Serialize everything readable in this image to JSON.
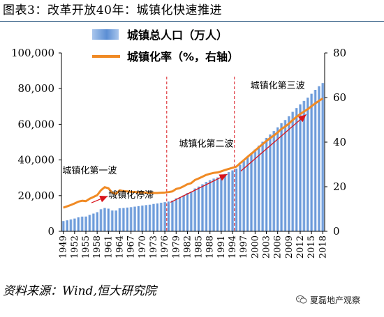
{
  "header": {
    "title": "图表3：改革开放40年：城镇化快速推进"
  },
  "footer": {
    "source": "资料来源：Wind,恒大研究院",
    "watermark": "夏磊地产观察"
  },
  "colors": {
    "bars": "#5b8ed4",
    "bars_light": "#a9c6ec",
    "line": "#f08a24",
    "arrow": "#d9141b",
    "divider": "#d9141b"
  },
  "chart_data": {
    "type": "bar",
    "series": [
      {
        "name": "城镇总人口（万人）",
        "type": "bar",
        "axis": "left",
        "x": [
          1949,
          1950,
          1951,
          1952,
          1953,
          1954,
          1955,
          1956,
          1957,
          1958,
          1959,
          1960,
          1961,
          1962,
          1963,
          1964,
          1965,
          1966,
          1967,
          1968,
          1969,
          1970,
          1971,
          1972,
          1973,
          1974,
          1975,
          1976,
          1977,
          1978,
          1979,
          1980,
          1981,
          1982,
          1983,
          1984,
          1985,
          1986,
          1987,
          1988,
          1989,
          1990,
          1991,
          1992,
          1993,
          1994,
          1995,
          1996,
          1997,
          1998,
          1999,
          2000,
          2001,
          2002,
          2003,
          2004,
          2005,
          2006,
          2007,
          2008,
          2009,
          2010,
          2011,
          2012,
          2013,
          2014,
          2015,
          2016,
          2017,
          2018
        ],
        "values": [
          5765,
          6169,
          6632,
          7163,
          7826,
          8249,
          8285,
          9185,
          9949,
          10721,
          12371,
          13073,
          12707,
          11659,
          11646,
          12950,
          13045,
          13313,
          13548,
          13838,
          14117,
          14424,
          14711,
          14935,
          15345,
          15595,
          16030,
          16341,
          16669,
          17245,
          18495,
          19140,
          20171,
          21480,
          22274,
          24017,
          25094,
          26366,
          27674,
          28661,
          29540,
          30195,
          31203,
          32175,
          33173,
          34169,
          35174,
          37304,
          39449,
          41608,
          43748,
          45906,
          48064,
          50212,
          52376,
          54283,
          56212,
          58288,
          60633,
          62403,
          64512,
          66978,
          69079,
          71182,
          73111,
          74916,
          77116,
          79298,
          81347,
          83137
        ]
      },
      {
        "name": "城镇化率（%，右轴）",
        "type": "line",
        "axis": "right",
        "x": [
          1949,
          1950,
          1951,
          1952,
          1953,
          1954,
          1955,
          1956,
          1957,
          1958,
          1959,
          1960,
          1961,
          1962,
          1963,
          1964,
          1965,
          1966,
          1967,
          1968,
          1969,
          1970,
          1971,
          1972,
          1973,
          1974,
          1975,
          1976,
          1977,
          1978,
          1979,
          1980,
          1981,
          1982,
          1983,
          1984,
          1985,
          1986,
          1987,
          1988,
          1989,
          1990,
          1991,
          1992,
          1993,
          1994,
          1995,
          1996,
          1997,
          1998,
          1999,
          2000,
          2001,
          2002,
          2003,
          2004,
          2005,
          2006,
          2007,
          2008,
          2009,
          2010,
          2011,
          2012,
          2013,
          2014,
          2015,
          2016,
          2017,
          2018
        ],
        "values": [
          10.6,
          11.2,
          11.8,
          12.5,
          13.3,
          13.7,
          13.5,
          14.6,
          15.4,
          16.2,
          18.4,
          19.8,
          19.3,
          17.3,
          16.8,
          18.4,
          18.0,
          17.9,
          17.7,
          17.6,
          17.5,
          17.4,
          17.3,
          17.1,
          17.2,
          17.2,
          17.3,
          17.4,
          17.6,
          17.9,
          19.0,
          19.4,
          20.2,
          21.1,
          21.6,
          23.0,
          23.7,
          24.5,
          25.3,
          25.8,
          26.2,
          26.4,
          26.9,
          27.5,
          28.0,
          28.5,
          29.0,
          30.5,
          31.9,
          33.4,
          34.8,
          36.2,
          37.7,
          39.1,
          40.5,
          41.8,
          43.0,
          44.3,
          45.9,
          47.0,
          48.3,
          49.9,
          51.3,
          52.6,
          53.7,
          54.8,
          56.1,
          57.4,
          58.5,
          59.6
        ]
      }
    ],
    "x_tick_labels": [
      "1949",
      "1952",
      "1955",
      "1958",
      "1961",
      "1964",
      "1967",
      "1970",
      "1973",
      "1976",
      "1979",
      "1982",
      "1985",
      "1988",
      "1991",
      "1994",
      "1997",
      "2000",
      "2003",
      "2006",
      "2009",
      "2012",
      "2015",
      "2018"
    ],
    "y_left": {
      "ylim": [
        0,
        100000
      ],
      "ticks": [
        "0",
        "20,000",
        "40,000",
        "60,000",
        "80,000",
        "100,000"
      ]
    },
    "y_right": {
      "ylim": [
        0,
        80
      ],
      "ticks": [
        "0",
        "20",
        "40",
        "60",
        "80"
      ]
    },
    "legend_placement": "top-center",
    "grid": false,
    "dividers": [
      1977,
      1995
    ],
    "annotations": [
      {
        "text": "城镇化第一波",
        "x": 1956,
        "y": 26
      },
      {
        "text": "城镇化停滞",
        "x": 1967,
        "y": 15
      },
      {
        "text": "城镇化第二波",
        "x": 1987,
        "y": 38
      },
      {
        "text": "城镇化第三波",
        "x": 2006,
        "y": 64
      }
    ],
    "arrows": [
      {
        "from": [
          1956.5,
          12.8
        ],
        "to": [
          1960.8,
          15.8
        ]
      },
      {
        "from": [
          1977.5,
          13.0
        ],
        "to": [
          1992.6,
          25.6
        ]
      },
      {
        "from": [
          1996.2,
          27.0
        ],
        "to": [
          2013.6,
          52.4
        ]
      }
    ]
  }
}
